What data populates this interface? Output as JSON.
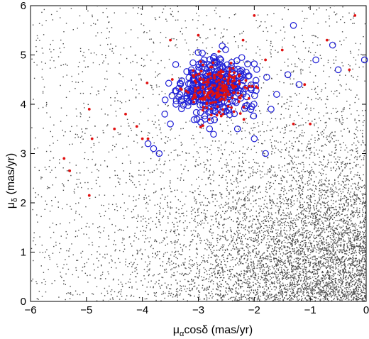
{
  "chart_data": {
    "type": "scatter",
    "title": "",
    "xlabel": {
      "mu": "μ",
      "sub": "α",
      "rest": "cosδ (mas/yr)"
    },
    "ylabel": {
      "mu": "μ",
      "sub": "δ",
      "rest": " (mas/yr)"
    },
    "xlim": [
      -6,
      0
    ],
    "ylim": [
      0,
      6
    ],
    "xticks": [
      -6,
      -5,
      -4,
      -3,
      -2,
      -1,
      0
    ],
    "yticks": [
      0,
      1,
      2,
      3,
      4,
      5,
      6
    ],
    "grid": false,
    "legend": "none",
    "series": [
      {
        "marker": "small gray dots",
        "color": "#4a4a4a",
        "distribution": "field stars, density increasing toward lower-right corner",
        "count_estimate": 7000
      },
      {
        "marker": "open circles",
        "color": "#1f1fd6",
        "center": [
          -2.7,
          4.35
        ],
        "points": [
          [
            -3.9,
            3.2
          ],
          [
            -3.8,
            3.1
          ],
          [
            -3.7,
            3.0
          ],
          [
            -3.6,
            3.8
          ],
          [
            -3.5,
            3.6
          ],
          [
            -3.4,
            4.0
          ],
          [
            -3.3,
            4.1
          ],
          [
            -2.8,
            3.5
          ],
          [
            -2.3,
            3.5
          ],
          [
            -2.0,
            3.3
          ],
          [
            -1.8,
            3.0
          ],
          [
            -1.7,
            3.9
          ],
          [
            -1.6,
            4.2
          ],
          [
            -1.4,
            4.6
          ],
          [
            -1.3,
            5.6
          ],
          [
            -1.2,
            4.4
          ],
          [
            -0.9,
            4.9
          ],
          [
            -0.6,
            5.2
          ],
          [
            -0.5,
            4.7
          ],
          [
            -0.03,
            4.9
          ],
          [
            -2.9,
            4.9
          ],
          [
            -2.6,
            4.9
          ],
          [
            -2.2,
            4.6
          ]
        ],
        "cluster_count_estimate": 350
      },
      {
        "marker": "filled dots",
        "color": "#e01010",
        "center": [
          -2.7,
          4.3
        ],
        "points": [
          [
            -5.4,
            2.9
          ],
          [
            -5.3,
            2.65
          ],
          [
            -4.95,
            2.15
          ],
          [
            -4.95,
            3.9
          ],
          [
            -4.9,
            3.3
          ],
          [
            -4.5,
            3.5
          ],
          [
            -4.1,
            3.55
          ],
          [
            -4.0,
            3.3
          ],
          [
            -3.9,
            3.3
          ],
          [
            -4.3,
            3.8
          ],
          [
            -3.5,
            5.3
          ],
          [
            -3.3,
            4.3
          ],
          [
            -2.0,
            5.8
          ],
          [
            -2.2,
            5.3
          ],
          [
            -1.5,
            5.1
          ],
          [
            -1.3,
            3.6
          ],
          [
            -1.0,
            3.6
          ],
          [
            -0.7,
            5.3
          ],
          [
            -0.2,
            5.8
          ],
          [
            -0.3,
            4.7
          ],
          [
            -3.0,
            5.4
          ],
          [
            -1.8,
            4.9
          ],
          [
            -1.1,
            4.4
          ]
        ],
        "cluster_count_estimate": 200
      }
    ]
  }
}
